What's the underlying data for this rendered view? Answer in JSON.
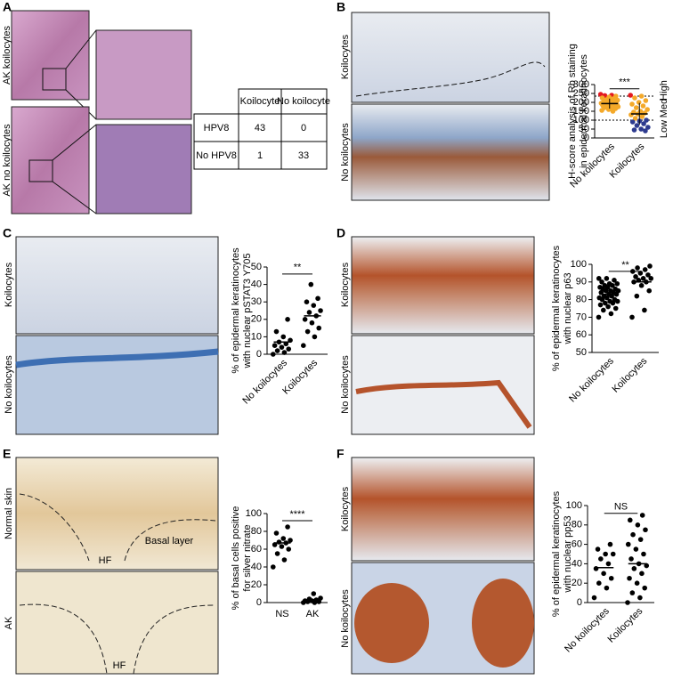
{
  "panel_labels": [
    "A",
    "B",
    "C",
    "D",
    "E",
    "F"
  ],
  "image_labels": [
    "AK koilocytes",
    "AK no koilocytes",
    "Koilocytes",
    "No koilocytes",
    "Koilocytes",
    "No koilocytes",
    "Koilocytes",
    "No koilocytes",
    "Normal skin",
    "AK",
    "Koilocytes",
    "No koilocytes"
  ],
  "image_annotations": [
    "HF",
    "Basal layer",
    "HF"
  ],
  "table": {
    "header": [
      "Koilocyte",
      "No koilocyte"
    ],
    "rows": [
      [
        "HPV8",
        43,
        0
      ],
      [
        "No HPV8",
        1,
        33
      ]
    ]
  },
  "chart_data": [
    {
      "type": "strip",
      "ylabel": [
        "H-score analysis of Rb staining",
        "in epidermal keratinocytes"
      ],
      "categories": [
        "No koilocytes",
        "Koilocytes"
      ],
      "values": [
        [
          245,
          240,
          238,
          235,
          230,
          225,
          220,
          215,
          212,
          210,
          205,
          200,
          198,
          195,
          192,
          190,
          188,
          185,
          182,
          180,
          178,
          175,
          172,
          170,
          165,
          160,
          155,
          150,
          195,
          185
        ],
        [
          240,
          235,
          225,
          210,
          200,
          190,
          180,
          170,
          160,
          150,
          145,
          140,
          135,
          130,
          120,
          110,
          100,
          95,
          90,
          80,
          70,
          60,
          50,
          45,
          40
        ]
      ],
      "means": [
        193,
        135
      ],
      "sd": [
        28,
        62
      ],
      "annotation": "***",
      "color": "#000000",
      "levels": [
        {
          "label": "Low",
          "color": "#2e3b8f",
          "from": 0,
          "to": 100
        },
        {
          "label": "Med",
          "color": "#f4a929",
          "from": 100,
          "to": 235
        },
        {
          "label": "High",
          "color": "#e3181f",
          "from": 235,
          "to": 300
        }
      ],
      "ylim": [
        0,
        300
      ],
      "yticks": [
        0,
        50,
        100,
        150,
        200,
        250,
        300
      ]
    },
    {
      "type": "strip",
      "ylabel": [
        "% of epidermal keratinocytes",
        "with nuclear pSTAT3 Y705"
      ],
      "categories": [
        "No koilocytes",
        "Koilocytes"
      ],
      "values": [
        [
          0,
          1,
          2,
          3,
          4,
          5,
          6,
          7,
          8,
          10,
          13,
          20
        ],
        [
          5,
          10,
          13,
          15,
          18,
          20,
          22,
          24,
          25,
          28,
          30,
          32,
          40
        ]
      ],
      "means": [
        7,
        22
      ],
      "annotation": "**",
      "color": "#000000",
      "ylim": [
        0,
        50
      ],
      "yticks": [
        0,
        10,
        20,
        30,
        40,
        50
      ]
    },
    {
      "type": "strip",
      "ylabel": [
        "% of epidermal keratinocytes",
        "with nuclear p63"
      ],
      "categories": [
        "No koilocytes",
        "Koilocytes"
      ],
      "values": [
        [
          70,
          72,
          74,
          75,
          76,
          77,
          78,
          78,
          79,
          79,
          80,
          80,
          81,
          81,
          82,
          82,
          83,
          83,
          84,
          84,
          85,
          85,
          85,
          86,
          86,
          87,
          87,
          88,
          88,
          89,
          89,
          90,
          91,
          92,
          92
        ],
        [
          70,
          74,
          82,
          85,
          88,
          90,
          90,
          91,
          92,
          92,
          93,
          94,
          95,
          96,
          97,
          98,
          99
        ]
      ],
      "means": [
        83,
        90
      ],
      "annotation": "**",
      "color": "#000000",
      "ylim": [
        50,
        100
      ],
      "yticks": [
        50,
        60,
        70,
        80,
        90,
        100
      ]
    },
    {
      "type": "strip",
      "ylabel": [
        "% of basal cells positive",
        "for silver nitrate"
      ],
      "categories": [
        "NS",
        "AK"
      ],
      "values": [
        [
          40,
          48,
          55,
          60,
          63,
          65,
          67,
          68,
          70,
          72,
          78,
          85
        ],
        [
          0,
          0,
          1,
          1,
          2,
          2,
          3,
          4,
          5,
          10
        ]
      ],
      "means": [
        67,
        3
      ],
      "annotation": "****",
      "color": "#000000",
      "ylim": [
        0,
        100
      ],
      "yticks": [
        0,
        20,
        40,
        60,
        80,
        100
      ]
    },
    {
      "type": "strip",
      "ylabel": [
        "% of epidermal keratinocytes",
        "with nuclear pp53"
      ],
      "categories": [
        "No koilocytes",
        "Koilocytes"
      ],
      "values": [
        [
          5,
          15,
          20,
          25,
          30,
          35,
          40,
          45,
          50,
          50,
          55,
          60
        ],
        [
          0,
          5,
          10,
          15,
          20,
          25,
          30,
          35,
          38,
          40,
          45,
          50,
          55,
          60,
          65,
          70,
          75,
          80,
          85,
          90
        ]
      ],
      "means": [
        36,
        40
      ],
      "annotation": "NS",
      "color": "#000000",
      "ylim": [
        0,
        100
      ],
      "yticks": [
        0,
        20,
        40,
        60,
        80,
        100
      ]
    }
  ]
}
